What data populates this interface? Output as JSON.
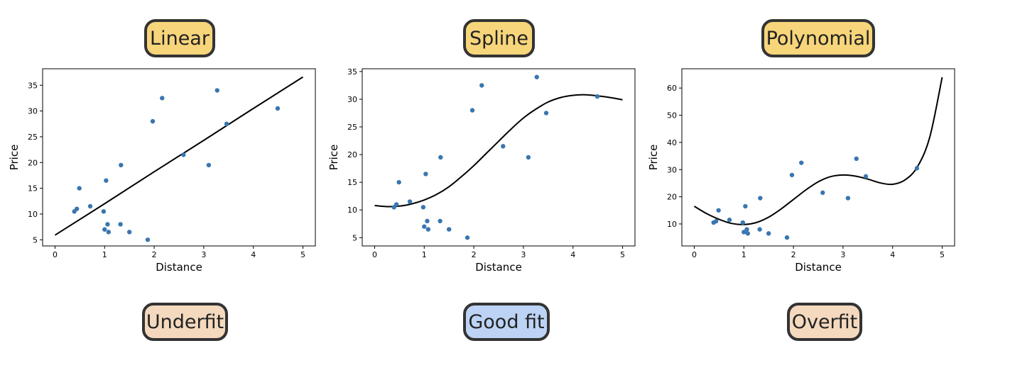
{
  "colors": {
    "title_badge": "#f7d57a",
    "underfit_badge": "#f4d9bf",
    "goodfit_badge": "#bcd3f5",
    "overfit_badge": "#f4d9bf",
    "points": "#3a76b0",
    "curve": "#000000",
    "badge_border": "#333333"
  },
  "badges": {
    "linear": "Linear",
    "spline": "Spline",
    "polynomial": "Polynomial",
    "underfit": "Underfit",
    "good_fit": "Good fit",
    "overfit": "Overfit"
  },
  "chart_data": [
    {
      "type": "scatter",
      "title": "Linear",
      "xlabel": "Distance",
      "ylabel": "Price",
      "xlim": [
        -0.25,
        5.25
      ],
      "ylim": [
        3.8,
        38.2
      ],
      "xticks": [
        0,
        1,
        2,
        3,
        4,
        5
      ],
      "yticks": [
        5,
        10,
        15,
        20,
        25,
        30,
        35
      ],
      "grid": false,
      "points": {
        "x": [
          0.39,
          0.44,
          0.49,
          0.71,
          0.98,
          1.0,
          1.03,
          1.06,
          1.08,
          1.32,
          1.33,
          1.5,
          1.87,
          1.97,
          2.16,
          2.59,
          3.1,
          3.27,
          3.46,
          4.49
        ],
        "y": [
          10.5,
          11.0,
          15.0,
          11.5,
          10.5,
          7.0,
          16.5,
          8.0,
          6.5,
          8.0,
          19.5,
          6.5,
          5.0,
          28.0,
          32.5,
          21.5,
          19.5,
          34.0,
          27.5,
          30.5
        ]
      },
      "fit_curve": {
        "label": "Underfit",
        "x": [
          0,
          1,
          2,
          3,
          4,
          5
        ],
        "y": [
          5.9,
          12.0,
          18.2,
          24.3,
          30.5,
          36.6
        ]
      }
    },
    {
      "type": "scatter",
      "title": "Spline",
      "xlabel": "Distance",
      "ylabel": "Price",
      "xlim": [
        -0.25,
        5.25
      ],
      "ylim": [
        3.5,
        35.5
      ],
      "xticks": [
        0,
        1,
        2,
        3,
        4,
        5
      ],
      "yticks": [
        5,
        10,
        15,
        20,
        25,
        30,
        35
      ],
      "grid": false,
      "points": {
        "x": [
          0.39,
          0.44,
          0.49,
          0.71,
          0.98,
          1.0,
          1.03,
          1.06,
          1.08,
          1.32,
          1.33,
          1.5,
          1.87,
          1.97,
          2.16,
          2.59,
          3.1,
          3.27,
          3.46,
          4.49
        ],
        "y": [
          10.5,
          11.0,
          15.0,
          11.5,
          10.5,
          7.0,
          16.5,
          8.0,
          6.5,
          8.0,
          19.5,
          6.5,
          5.0,
          28.0,
          32.5,
          21.5,
          19.5,
          34.0,
          27.5,
          30.5
        ]
      },
      "fit_curve": {
        "label": "Good fit",
        "x": [
          0,
          0.25,
          0.5,
          0.75,
          1.0,
          1.25,
          1.5,
          1.75,
          2.0,
          2.25,
          2.5,
          2.75,
          3.0,
          3.25,
          3.5,
          3.75,
          4.0,
          4.25,
          4.5,
          4.75,
          5.0
        ],
        "y": [
          10.8,
          10.6,
          10.7,
          11.1,
          11.8,
          12.8,
          14.2,
          16.0,
          18.0,
          20.2,
          22.4,
          24.6,
          26.6,
          28.2,
          29.5,
          30.3,
          30.7,
          30.8,
          30.6,
          30.3,
          29.9
        ]
      }
    },
    {
      "type": "scatter",
      "title": "Polynomial",
      "xlabel": "Distance",
      "ylabel": "Price",
      "xlim": [
        -0.25,
        5.25
      ],
      "ylim": [
        1.9,
        67.1
      ],
      "xticks": [
        0,
        1,
        2,
        3,
        4,
        5
      ],
      "yticks": [
        10,
        20,
        30,
        40,
        50,
        60
      ],
      "grid": false,
      "points": {
        "x": [
          0.39,
          0.44,
          0.49,
          0.71,
          0.98,
          1.0,
          1.03,
          1.06,
          1.08,
          1.32,
          1.33,
          1.5,
          1.87,
          1.97,
          2.16,
          2.59,
          3.1,
          3.27,
          3.46,
          4.49
        ],
        "y": [
          10.5,
          11.0,
          15.0,
          11.5,
          10.5,
          7.0,
          16.5,
          8.0,
          6.5,
          8.0,
          19.5,
          6.5,
          5.0,
          28.0,
          32.5,
          21.5,
          19.5,
          34.0,
          27.5,
          30.5
        ]
      },
      "fit_curve": {
        "label": "Overfit",
        "x": [
          0,
          0.25,
          0.5,
          0.75,
          1.0,
          1.25,
          1.5,
          1.75,
          2.0,
          2.25,
          2.5,
          2.75,
          3.0,
          3.25,
          3.5,
          3.75,
          4.0,
          4.25,
          4.5,
          4.75,
          5.0
        ],
        "y": [
          16.5,
          13.8,
          11.7,
          10.2,
          9.8,
          10.5,
          12.5,
          15.5,
          19.0,
          22.5,
          25.5,
          27.4,
          28.0,
          27.6,
          26.5,
          25.1,
          24.6,
          26.2,
          31.0,
          42.0,
          64.0
        ]
      }
    }
  ]
}
